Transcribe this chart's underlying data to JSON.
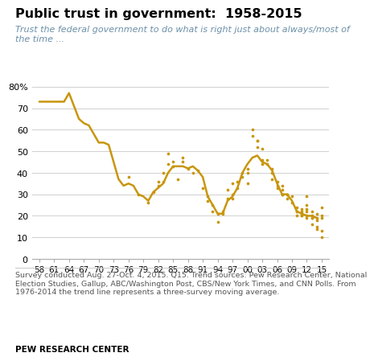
{
  "title": "Public trust in government:  1958-2015",
  "subtitle": "Trust the federal government to do what is right just about always/most of\nthe time ...",
  "footnote": "Survey conducted Aug. 27-Oct. 4, 2015. Q15. Trend sources: Pew Research Center, National\nElection Studies, Gallup, ABC/Washington Post, CBS/New York Times, and CNN Polls. From\n1976-2014 the trend line represents a three-survey moving average.",
  "source": "PEW RESEARCH CENTER",
  "line_color": "#C8960C",
  "dot_color": "#C8960C",
  "xtick_labels": [
    "58",
    "61",
    "64",
    "67",
    "70",
    "73",
    "76",
    "79",
    "82",
    "85",
    "88",
    "91",
    "94",
    "97",
    "00",
    "03",
    "06",
    "09",
    "12",
    "15"
  ],
  "xtick_years": [
    1958,
    1961,
    1964,
    1967,
    1970,
    1973,
    1976,
    1979,
    1982,
    1985,
    1988,
    1991,
    1994,
    1997,
    2000,
    2003,
    2006,
    2009,
    2012,
    2015
  ],
  "yticks": [
    0,
    10,
    20,
    30,
    40,
    50,
    60,
    70,
    80
  ],
  "trend_line": [
    [
      1958,
      73
    ],
    [
      1959,
      73
    ],
    [
      1960,
      73
    ],
    [
      1961,
      73
    ],
    [
      1962,
      73
    ],
    [
      1963,
      73
    ],
    [
      1964,
      77
    ],
    [
      1965,
      71
    ],
    [
      1966,
      65
    ],
    [
      1967,
      63
    ],
    [
      1968,
      62
    ],
    [
      1969,
      58
    ],
    [
      1970,
      54
    ],
    [
      1971,
      54
    ],
    [
      1972,
      53
    ],
    [
      1973,
      45
    ],
    [
      1974,
      37
    ],
    [
      1975,
      34
    ],
    [
      1976,
      35
    ],
    [
      1977,
      34
    ],
    [
      1978,
      30
    ],
    [
      1979,
      29
    ],
    [
      1980,
      27
    ],
    [
      1981,
      31
    ],
    [
      1982,
      33
    ],
    [
      1983,
      35
    ],
    [
      1984,
      40
    ],
    [
      1985,
      43
    ],
    [
      1986,
      43
    ],
    [
      1987,
      43
    ],
    [
      1988,
      42
    ],
    [
      1989,
      43
    ],
    [
      1990,
      41
    ],
    [
      1991,
      38
    ],
    [
      1992,
      29
    ],
    [
      1993,
      25
    ],
    [
      1994,
      21
    ],
    [
      1995,
      21
    ],
    [
      1996,
      27
    ],
    [
      1997,
      29
    ],
    [
      1998,
      33
    ],
    [
      1999,
      40
    ],
    [
      2000,
      44
    ],
    [
      2001,
      47
    ],
    [
      2002,
      48
    ],
    [
      2003,
      45
    ],
    [
      2004,
      44
    ],
    [
      2005,
      41
    ],
    [
      2006,
      35
    ],
    [
      2007,
      30
    ],
    [
      2008,
      30
    ],
    [
      2009,
      27
    ],
    [
      2010,
      22
    ],
    [
      2011,
      21
    ],
    [
      2012,
      20
    ],
    [
      2013,
      20
    ],
    [
      2014,
      19
    ]
  ],
  "scatter_points": [
    [
      1976,
      38
    ],
    [
      1978,
      30
    ],
    [
      1980,
      26
    ],
    [
      1981,
      31
    ],
    [
      1982,
      34
    ],
    [
      1982,
      36
    ],
    [
      1983,
      36
    ],
    [
      1983,
      40
    ],
    [
      1984,
      44
    ],
    [
      1984,
      49
    ],
    [
      1985,
      43
    ],
    [
      1985,
      45
    ],
    [
      1986,
      37
    ],
    [
      1987,
      45
    ],
    [
      1987,
      47
    ],
    [
      1988,
      42
    ],
    [
      1989,
      40
    ],
    [
      1990,
      41
    ],
    [
      1991,
      33
    ],
    [
      1992,
      29
    ],
    [
      1992,
      27
    ],
    [
      1993,
      25
    ],
    [
      1993,
      22
    ],
    [
      1994,
      21
    ],
    [
      1994,
      17
    ],
    [
      1995,
      21
    ],
    [
      1995,
      22
    ],
    [
      1996,
      28
    ],
    [
      1996,
      32
    ],
    [
      1997,
      30
    ],
    [
      1997,
      28
    ],
    [
      1997,
      35
    ],
    [
      1998,
      33
    ],
    [
      1998,
      36
    ],
    [
      1999,
      38
    ],
    [
      1999,
      40
    ],
    [
      2000,
      35
    ],
    [
      2000,
      40
    ],
    [
      2000,
      42
    ],
    [
      2001,
      57
    ],
    [
      2001,
      60
    ],
    [
      2002,
      55
    ],
    [
      2002,
      55
    ],
    [
      2002,
      52
    ],
    [
      2003,
      44
    ],
    [
      2003,
      51
    ],
    [
      2003,
      46
    ],
    [
      2004,
      46
    ],
    [
      2004,
      44
    ],
    [
      2005,
      42
    ],
    [
      2005,
      40
    ],
    [
      2005,
      37
    ],
    [
      2006,
      36
    ],
    [
      2006,
      33
    ],
    [
      2006,
      34
    ],
    [
      2007,
      30
    ],
    [
      2007,
      32
    ],
    [
      2007,
      34
    ],
    [
      2007,
      30
    ],
    [
      2008,
      30
    ],
    [
      2008,
      30
    ],
    [
      2008,
      28
    ],
    [
      2009,
      26
    ],
    [
      2009,
      29
    ],
    [
      2010,
      22
    ],
    [
      2010,
      22
    ],
    [
      2010,
      24
    ],
    [
      2010,
      20
    ],
    [
      2011,
      22
    ],
    [
      2011,
      20
    ],
    [
      2011,
      21
    ],
    [
      2011,
      20
    ],
    [
      2011,
      23
    ],
    [
      2012,
      19
    ],
    [
      2012,
      20
    ],
    [
      2012,
      22
    ],
    [
      2012,
      23
    ],
    [
      2012,
      25
    ],
    [
      2012,
      29
    ],
    [
      2013,
      19
    ],
    [
      2013,
      19
    ],
    [
      2013,
      16
    ],
    [
      2013,
      20
    ],
    [
      2013,
      22
    ],
    [
      2014,
      14
    ],
    [
      2014,
      15
    ],
    [
      2014,
      18
    ],
    [
      2014,
      21
    ],
    [
      2014,
      19
    ],
    [
      2015,
      19
    ],
    [
      2015,
      13
    ],
    [
      2015,
      20
    ],
    [
      2015,
      24
    ],
    [
      2015,
      10
    ]
  ]
}
